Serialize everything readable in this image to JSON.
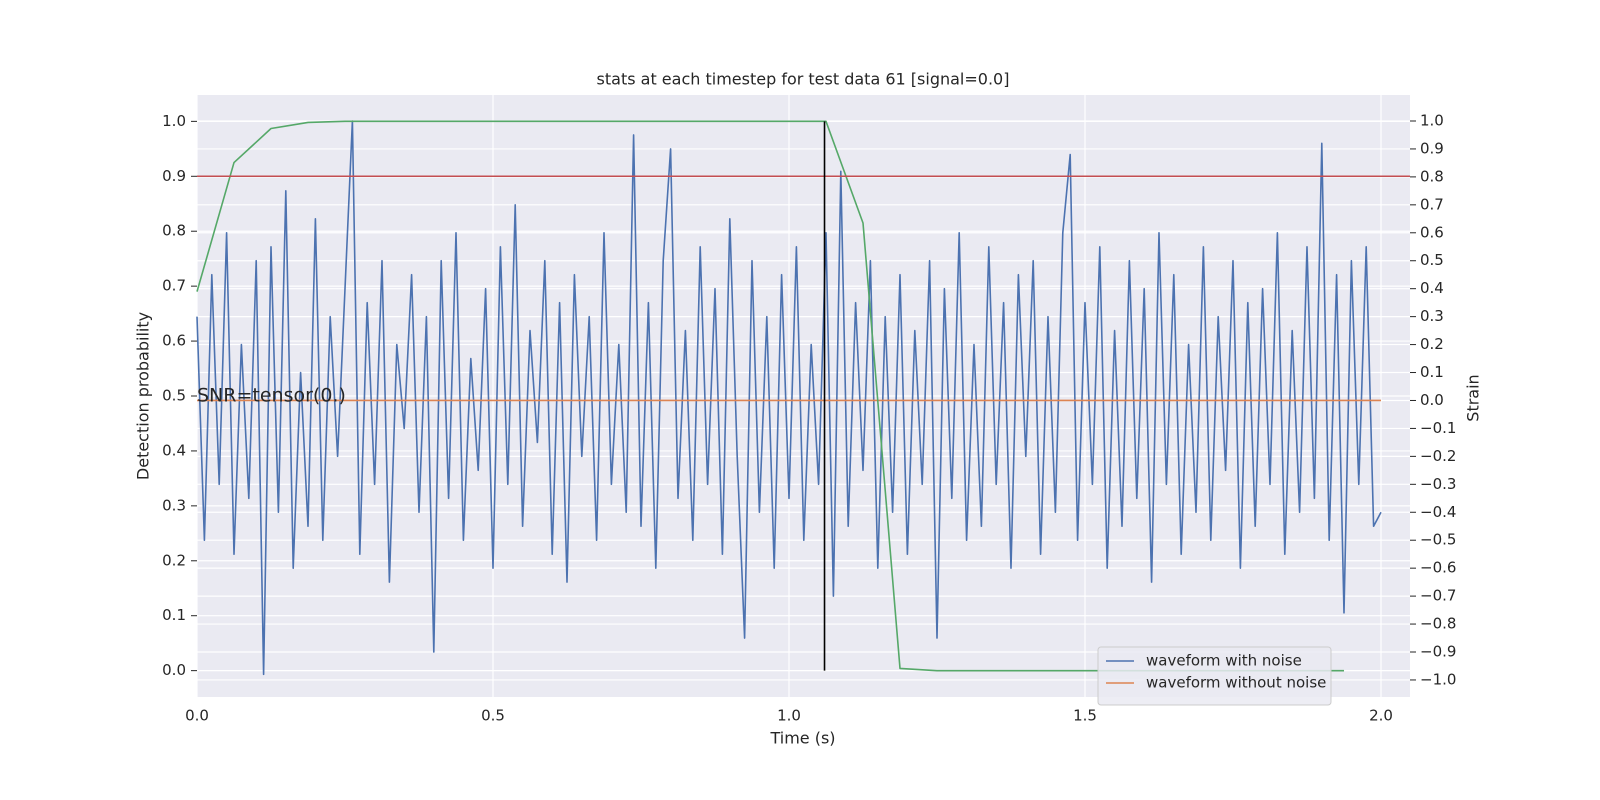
{
  "chart_data": {
    "type": "line",
    "title": "stats at each timestep for test data 61 [signal=0.0]",
    "xlabel": "Time (s)",
    "ylabel": "Detection probability",
    "y2label": "Strain",
    "xlim": [
      0,
      2.049
    ],
    "ylim": [
      -0.048,
      1.048
    ],
    "y2lim": [
      -1.061,
      1.093
    ],
    "xticks": [
      {
        "value": 0,
        "label": "0.0"
      },
      {
        "value": 0.5,
        "label": "0.5"
      },
      {
        "value": 1,
        "label": "1.0"
      },
      {
        "value": 1.5,
        "label": "1.5"
      },
      {
        "value": 2,
        "label": "2.0"
      }
    ],
    "yticks": [
      {
        "value": 0,
        "label": "0.0"
      },
      {
        "value": 0.1,
        "label": "0.1"
      },
      {
        "value": 0.2,
        "label": "0.2"
      },
      {
        "value": 0.3,
        "label": "0.3"
      },
      {
        "value": 0.4,
        "label": "0.4"
      },
      {
        "value": 0.5,
        "label": "0.5"
      },
      {
        "value": 0.6,
        "label": "0.6"
      },
      {
        "value": 0.7,
        "label": "0.7"
      },
      {
        "value": 0.8,
        "label": "0.8"
      },
      {
        "value": 0.9,
        "label": "0.9"
      },
      {
        "value": 1,
        "label": "1.0"
      }
    ],
    "y2ticks": [
      {
        "value": -1,
        "label": "−1.0"
      },
      {
        "value": -0.9,
        "label": "−0.9"
      },
      {
        "value": -0.8,
        "label": "−0.8"
      },
      {
        "value": -0.7,
        "label": "−0.7"
      },
      {
        "value": -0.6,
        "label": "−0.6"
      },
      {
        "value": -0.5,
        "label": "−0.5"
      },
      {
        "value": -0.4,
        "label": "−0.4"
      },
      {
        "value": -0.3,
        "label": "−0.3"
      },
      {
        "value": -0.2,
        "label": "−0.2"
      },
      {
        "value": -0.1,
        "label": "−0.1"
      },
      {
        "value": 0,
        "label": "0.0"
      },
      {
        "value": 0.1,
        "label": "0.1"
      },
      {
        "value": 0.2,
        "label": "0.2"
      },
      {
        "value": 0.3,
        "label": "0.3"
      },
      {
        "value": 0.4,
        "label": "0.4"
      },
      {
        "value": 0.5,
        "label": "0.5"
      },
      {
        "value": 0.6,
        "label": "0.6"
      },
      {
        "value": 0.7,
        "label": "0.7"
      },
      {
        "value": 0.8,
        "label": "0.8"
      },
      {
        "value": 0.9,
        "label": "0.9"
      },
      {
        "value": 1,
        "label": "1.0"
      }
    ],
    "grid": true,
    "legend": "lower right",
    "series": [
      {
        "name": "waveform with noise",
        "color": "#4c72b0",
        "axis": "y2",
        "x": [
          0,
          0.0125,
          0.025,
          0.0375,
          0.05,
          0.0625,
          0.075,
          0.0875,
          0.1,
          0.1125,
          0.125,
          0.1375,
          0.15,
          0.1625,
          0.175,
          0.1875,
          0.2,
          0.2125,
          0.225,
          0.2375,
          0.25,
          0.2625,
          0.275,
          0.2875,
          0.3,
          0.3125,
          0.325,
          0.3375,
          0.35,
          0.3625,
          0.375,
          0.3875,
          0.4,
          0.4125,
          0.425,
          0.4375,
          0.45,
          0.4625,
          0.475,
          0.4875,
          0.5,
          0.5125,
          0.525,
          0.5375,
          0.55,
          0.5625,
          0.575,
          0.5875,
          0.6,
          0.6125,
          0.625,
          0.6375,
          0.65,
          0.6625,
          0.675,
          0.6875,
          0.7,
          0.7125,
          0.725,
          0.7375,
          0.75,
          0.7625,
          0.775,
          0.7875,
          0.8,
          0.8125,
          0.825,
          0.8375,
          0.85,
          0.8625,
          0.875,
          0.8875,
          0.9,
          0.9125,
          0.925,
          0.9375,
          0.95,
          0.9625,
          0.975,
          0.9875,
          1,
          1.0125,
          1.025,
          1.0375,
          1.05,
          1.0625,
          1.075,
          1.0875,
          1.1,
          1.1125,
          1.125,
          1.1375,
          1.15,
          1.1625,
          1.175,
          1.1875,
          1.2,
          1.2125,
          1.225,
          1.2375,
          1.25,
          1.2625,
          1.275,
          1.2875,
          1.3,
          1.3125,
          1.325,
          1.3375,
          1.35,
          1.3625,
          1.375,
          1.3875,
          1.4,
          1.4125,
          1.425,
          1.4375,
          1.45,
          1.4625,
          1.475,
          1.4875,
          1.5,
          1.5125,
          1.525,
          1.5375,
          1.55,
          1.5625,
          1.575,
          1.5875,
          1.6,
          1.6125,
          1.625,
          1.6375,
          1.65,
          1.6625,
          1.675,
          1.6875,
          1.7,
          1.7125,
          1.725,
          1.7375,
          1.75,
          1.7625,
          1.775,
          1.7875,
          1.8,
          1.8125,
          1.825,
          1.8375,
          1.85,
          1.8625,
          1.875,
          1.8875,
          1.9,
          1.9125,
          1.925,
          1.9375,
          1.95,
          1.9625,
          1.975,
          1.9875,
          2
        ],
        "values": [
          0.3,
          -0.5,
          0.45,
          -0.3,
          0.6,
          -0.55,
          0.2,
          -0.35,
          0.5,
          -0.98,
          0.55,
          -0.4,
          0.75,
          -0.6,
          0.1,
          -0.45,
          0.65,
          -0.5,
          0.3,
          -0.2,
          0.4,
          1.0,
          -0.55,
          0.35,
          -0.3,
          0.5,
          -0.65,
          0.2,
          -0.1,
          0.45,
          -0.4,
          0.3,
          -0.9,
          0.5,
          -0.35,
          0.6,
          -0.5,
          0.15,
          -0.25,
          0.4,
          -0.6,
          0.55,
          -0.3,
          0.7,
          -0.45,
          0.25,
          -0.15,
          0.5,
          -0.55,
          0.35,
          -0.65,
          0.45,
          -0.2,
          0.3,
          -0.5,
          0.6,
          -0.3,
          0.2,
          -0.4,
          0.95,
          -0.45,
          0.35,
          -0.6,
          0.5,
          0.9,
          -0.35,
          0.25,
          -0.5,
          0.55,
          -0.3,
          0.4,
          -0.55,
          0.65,
          -0.2,
          -0.85,
          0.5,
          -0.4,
          0.3,
          -0.6,
          0.45,
          -0.35,
          0.55,
          -0.5,
          0.2,
          -0.3,
          0.6,
          -0.7,
          0.82,
          -0.45,
          0.35,
          -0.25,
          0.5,
          -0.6,
          0.3,
          -0.4,
          0.45,
          -0.55,
          0.25,
          -0.3,
          0.5,
          -0.85,
          0.4,
          -0.35,
          0.6,
          -0.5,
          0.2,
          -0.45,
          0.55,
          -0.3,
          0.35,
          -0.6,
          0.45,
          -0.2,
          0.5,
          -0.55,
          0.3,
          -0.4,
          0.6,
          0.88,
          -0.5,
          0.35,
          -0.3,
          0.55,
          -0.6,
          0.25,
          -0.45,
          0.5,
          -0.35,
          0.4,
          -0.65,
          0.6,
          -0.3,
          0.45,
          -0.55,
          0.2,
          -0.4,
          0.55,
          -0.5,
          0.3,
          -0.25,
          0.5,
          -0.6,
          0.35,
          -0.45,
          0.4,
          -0.3,
          0.6,
          -0.55,
          0.25,
          -0.4,
          0.55,
          -0.35,
          0.92,
          -0.5,
          0.45,
          -0.76,
          0.5,
          -0.3,
          0.55,
          -0.45,
          -0.4
        ]
      },
      {
        "name": "waveform without noise",
        "color": "#dd8452",
        "axis": "y2",
        "x": [
          0,
          2
        ],
        "values": [
          0,
          0
        ]
      },
      {
        "color": "#55a868",
        "x": [
          0,
          0.0625,
          0.125,
          0.1875,
          0.25,
          0.3125,
          0.375,
          0.4375,
          0.5,
          0.5625,
          0.625,
          0.6875,
          0.75,
          0.8125,
          0.875,
          0.9375,
          1,
          1.0625,
          1.125,
          1.1875,
          1.25,
          1.3125,
          1.375,
          1.4375,
          1.5,
          1.5625,
          1.625,
          1.6875,
          1.75,
          1.8125,
          1.875,
          1.9375
        ],
        "values": [
          0.69,
          0.925,
          0.987,
          0.998,
          1,
          1,
          1,
          1,
          1,
          1,
          1,
          1,
          1,
          1,
          1,
          1,
          1,
          1,
          0.815,
          0.004,
          0,
          0,
          0,
          0,
          0,
          0,
          0,
          0,
          0,
          0,
          0,
          0
        ]
      }
    ],
    "hlines": [
      {
        "value": 0.9,
        "color": "#c44e52"
      }
    ],
    "vlines": [
      {
        "value": 1.06,
        "ymin": 0,
        "ymax": 1,
        "color": "#000000"
      }
    ],
    "annotations": [
      {
        "text": "SNR=tensor(0.)",
        "x": 0,
        "y": 0.5
      }
    ]
  }
}
